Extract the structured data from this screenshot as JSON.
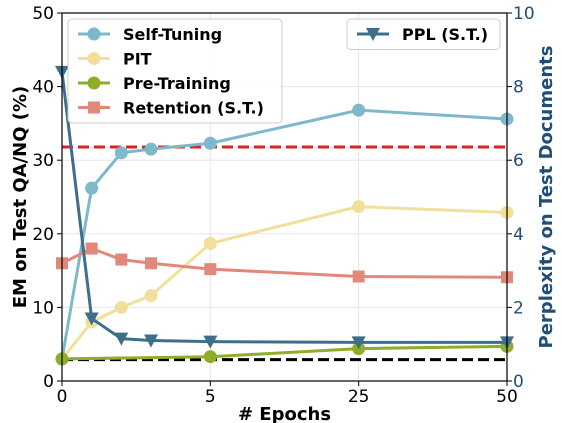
{
  "chart_data": {
    "type": "line",
    "x": [
      0,
      1,
      2,
      3,
      5,
      25,
      50
    ],
    "xticks": [
      "0",
      "5",
      "25",
      "50"
    ],
    "xlabel": "# Epochs",
    "ylabel_left": "EM on Test QA/NQ (%)",
    "ylabel_right": "Perplexity on Test Documents",
    "ylim_left": [
      0,
      50
    ],
    "ylim_right": [
      0,
      10
    ],
    "yticks_left": [
      "0",
      "10",
      "20",
      "30",
      "40",
      "50"
    ],
    "yticks_right": [
      "0",
      "2",
      "4",
      "6",
      "8",
      "10"
    ],
    "grid": true,
    "legend_left_position": "upper-left",
    "legend_right_position": "upper-right",
    "series": [
      {
        "name": "Self-Tuning",
        "axis": "left",
        "color": "#7db8cb",
        "marker": "circle",
        "values": [
          3.0,
          26.2,
          31.0,
          31.5,
          32.3,
          36.8,
          35.6
        ]
      },
      {
        "name": "PIT",
        "axis": "left",
        "color": "#f2e09a",
        "marker": "circle",
        "values": [
          3.0,
          8.0,
          10.0,
          11.6,
          18.7,
          23.7,
          22.9
        ]
      },
      {
        "name": "Pre-Training",
        "axis": "left",
        "color": "#8fad2b",
        "marker": "circle",
        "values": [
          3.0,
          null,
          null,
          null,
          3.3,
          4.4,
          4.7
        ]
      },
      {
        "name": "Retention (S.T.)",
        "axis": "left",
        "color": "#e2887a",
        "marker": "square",
        "values": [
          16.0,
          18.0,
          16.5,
          16.0,
          15.2,
          14.2,
          14.1
        ]
      },
      {
        "name": "PPL (S.T.)",
        "axis": "right",
        "color": "#3e6f8a",
        "marker": "triangle-down",
        "values": [
          8.4,
          1.7,
          1.15,
          1.1,
          1.07,
          1.05,
          1.05
        ]
      }
    ],
    "reference_lines": [
      {
        "axis": "left",
        "value": 31.8,
        "color": "#e02020",
        "style": "dashed"
      },
      {
        "axis": "left",
        "value": 2.9,
        "color": "#000000",
        "style": "dashed"
      }
    ]
  },
  "colors": {
    "right_axis_label": "#1f4e79",
    "grid": "#e6e6e6"
  }
}
